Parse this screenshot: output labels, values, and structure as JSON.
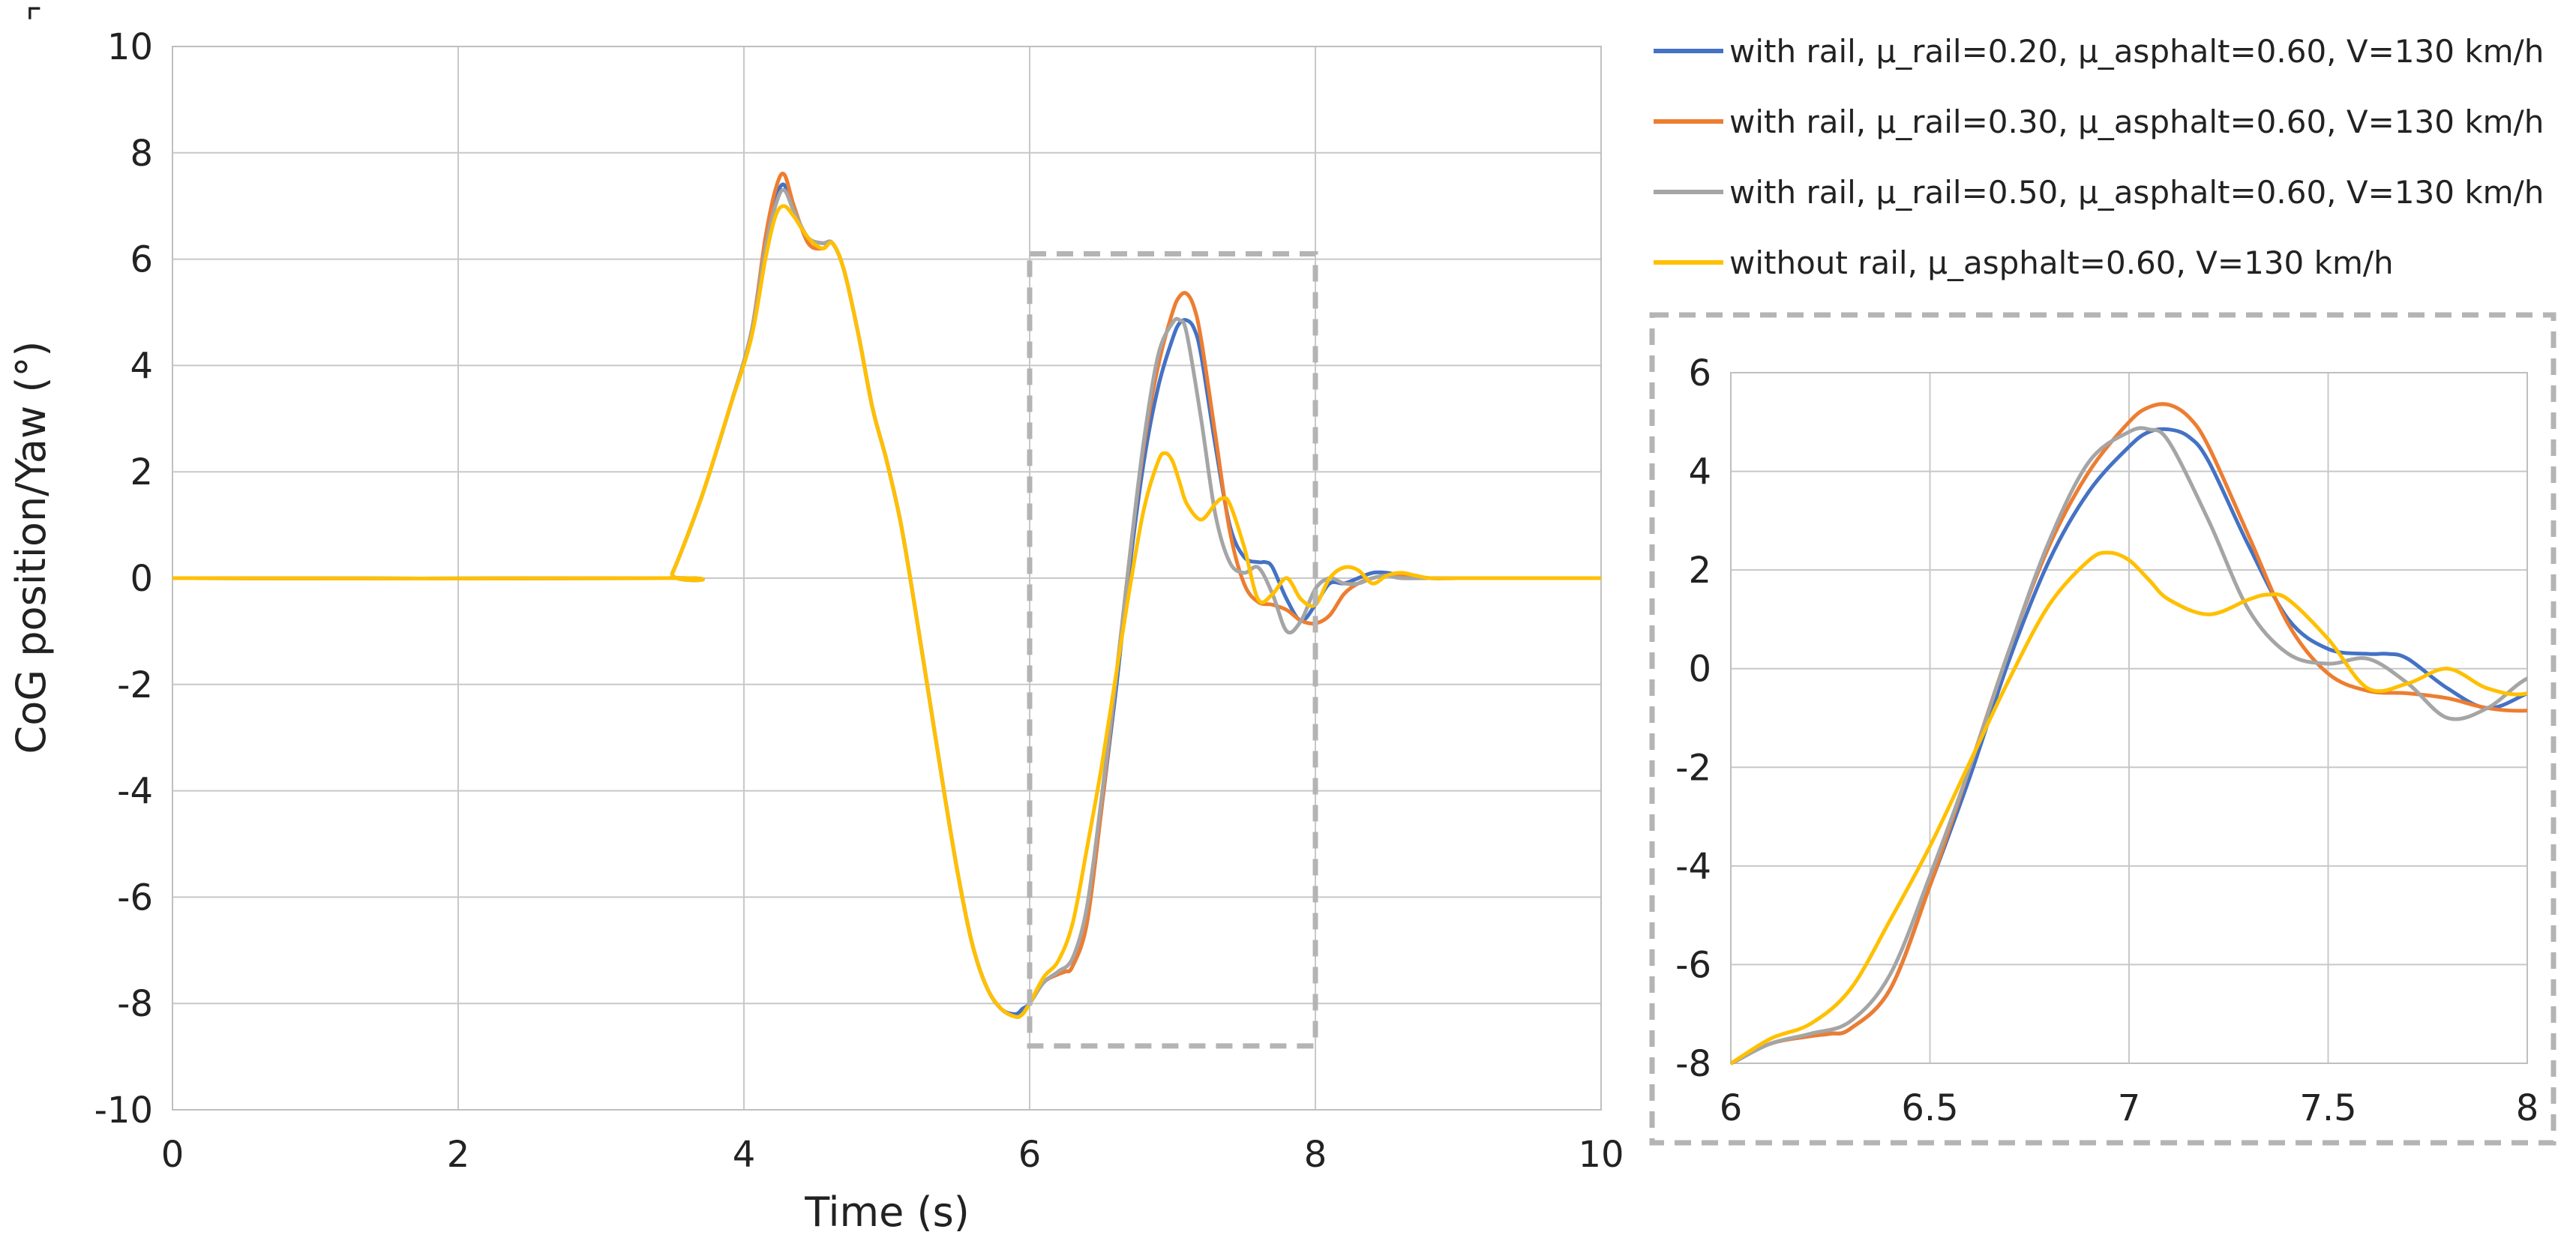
{
  "chart_data": [
    {
      "id": "main",
      "type": "line",
      "title": "",
      "xlabel": "Time  (s)",
      "ylabel": "CoG position/Yaw (°)",
      "xlim": [
        0,
        10
      ],
      "ylim": [
        -10,
        10
      ],
      "xticks": [
        0,
        2,
        4,
        6,
        8,
        10
      ],
      "yticks": [
        -10,
        -8,
        -6,
        -4,
        -2,
        0,
        2,
        4,
        6,
        8,
        10
      ],
      "grid": true,
      "legend_position": "top-right (outside plot)",
      "zoom_region": {
        "x": [
          6,
          8
        ],
        "y": [
          -8.8,
          6.1
        ]
      },
      "series": [
        {
          "name": "with rail, μ_rail=0.20, μ_asphalt=0.60, V=130 km/h",
          "color": "#4472C4",
          "x": [
            0,
            3.45,
            3.5,
            3.7,
            3.9,
            4.05,
            4.15,
            4.22,
            4.28,
            4.35,
            4.45,
            4.55,
            4.62,
            4.7,
            4.8,
            4.9,
            5.0,
            5.1,
            5.2,
            5.3,
            5.4,
            5.5,
            5.6,
            5.7,
            5.8,
            5.9,
            5.95,
            6.0,
            6.1,
            6.2,
            6.25,
            6.3,
            6.4,
            6.5,
            6.6,
            6.7,
            6.8,
            6.9,
            7.0,
            7.05,
            7.1,
            7.15,
            7.2,
            7.3,
            7.4,
            7.5,
            7.6,
            7.65,
            7.7,
            7.8,
            7.9,
            8.0,
            8.1,
            8.2,
            8.3,
            8.4,
            8.5,
            8.6,
            8.8,
            9.0,
            9.5,
            10
          ],
          "y": [
            0,
            0,
            0.1,
            1.5,
            3.2,
            4.6,
            6.2,
            7.1,
            7.4,
            6.9,
            6.4,
            6.3,
            6.3,
            5.8,
            4.6,
            3.2,
            2.2,
            1.0,
            -0.6,
            -2.3,
            -4.0,
            -5.6,
            -6.9,
            -7.7,
            -8.1,
            -8.2,
            -8.1,
            -8.0,
            -7.6,
            -7.45,
            -7.4,
            -7.3,
            -6.5,
            -4.4,
            -2.2,
            0.2,
            2.2,
            3.6,
            4.5,
            4.8,
            4.85,
            4.7,
            4.2,
            2.5,
            1.0,
            0.4,
            0.3,
            0.3,
            0.2,
            -0.4,
            -0.8,
            -0.5,
            -0.1,
            -0.1,
            0.0,
            0.1,
            0.1,
            0.05,
            0.0,
            0.0,
            0.0,
            0.0
          ]
        },
        {
          "name": "with rail, μ_rail=0.30, μ_asphalt=0.60, V=130 km/h",
          "color": "#ED7D31",
          "x": [
            0,
            3.45,
            3.5,
            3.7,
            3.9,
            4.05,
            4.15,
            4.22,
            4.28,
            4.35,
            4.45,
            4.55,
            4.62,
            4.7,
            4.8,
            4.9,
            5.0,
            5.1,
            5.2,
            5.3,
            5.4,
            5.5,
            5.6,
            5.7,
            5.8,
            5.9,
            5.95,
            6.0,
            6.1,
            6.2,
            6.25,
            6.3,
            6.4,
            6.5,
            6.6,
            6.7,
            6.8,
            6.9,
            7.0,
            7.05,
            7.1,
            7.15,
            7.2,
            7.3,
            7.4,
            7.5,
            7.6,
            7.7,
            7.8,
            7.9,
            8.0,
            8.1,
            8.2,
            8.3,
            8.4,
            8.5,
            8.6,
            8.8,
            9.0,
            9.5,
            10
          ],
          "y": [
            0,
            0,
            0.1,
            1.5,
            3.2,
            4.6,
            6.4,
            7.3,
            7.6,
            7.0,
            6.3,
            6.2,
            6.3,
            5.8,
            4.6,
            3.2,
            2.2,
            1.0,
            -0.6,
            -2.3,
            -4.0,
            -5.6,
            -6.9,
            -7.7,
            -8.1,
            -8.25,
            -8.2,
            -8.0,
            -7.6,
            -7.45,
            -7.4,
            -7.3,
            -6.5,
            -4.4,
            -2.0,
            0.4,
            2.5,
            4.0,
            5.0,
            5.3,
            5.35,
            5.1,
            4.5,
            2.7,
            0.9,
            -0.1,
            -0.45,
            -0.5,
            -0.6,
            -0.8,
            -0.85,
            -0.7,
            -0.3,
            -0.1,
            0.0,
            0.05,
            0.05,
            0.0,
            0.0,
            0.0,
            0.0
          ]
        },
        {
          "name": "with rail, μ_rail=0.50, μ_asphalt=0.60, V=130 km/h",
          "color": "#A5A5A5",
          "x": [
            0,
            3.45,
            3.5,
            3.7,
            3.9,
            4.05,
            4.15,
            4.22,
            4.28,
            4.35,
            4.45,
            4.55,
            4.62,
            4.7,
            4.8,
            4.9,
            5.0,
            5.1,
            5.2,
            5.3,
            5.4,
            5.5,
            5.6,
            5.7,
            5.8,
            5.9,
            5.95,
            6.0,
            6.1,
            6.2,
            6.3,
            6.4,
            6.5,
            6.6,
            6.7,
            6.8,
            6.9,
            7.0,
            7.05,
            7.1,
            7.2,
            7.3,
            7.4,
            7.5,
            7.6,
            7.7,
            7.8,
            7.9,
            8.0,
            8.1,
            8.2,
            8.3,
            8.4,
            8.5,
            8.6,
            8.8,
            9.0,
            9.5,
            10
          ],
          "y": [
            0,
            0,
            0.1,
            1.5,
            3.2,
            4.6,
            6.2,
            7.0,
            7.3,
            6.9,
            6.4,
            6.3,
            6.3,
            5.8,
            4.6,
            3.2,
            2.2,
            1.0,
            -0.6,
            -2.3,
            -4.0,
            -5.6,
            -6.9,
            -7.7,
            -8.1,
            -8.25,
            -8.2,
            -8.0,
            -7.6,
            -7.4,
            -7.15,
            -6.2,
            -4.2,
            -2.0,
            0.4,
            2.6,
            4.2,
            4.8,
            4.85,
            4.6,
            3.0,
            1.2,
            0.3,
            0.1,
            0.2,
            -0.3,
            -1.0,
            -0.8,
            -0.2,
            0.0,
            -0.1,
            -0.1,
            0.0,
            0.05,
            0.0,
            0.0,
            0.0,
            0.0,
            0.0
          ]
        },
        {
          "name": "without rail, μ_asphalt=0.60, V=130 km/h",
          "color": "#FFC000",
          "x": [
            0,
            3.45,
            3.5,
            3.7,
            3.9,
            4.05,
            4.15,
            4.22,
            4.28,
            4.35,
            4.45,
            4.55,
            4.62,
            4.7,
            4.8,
            4.9,
            5.0,
            5.1,
            5.2,
            5.3,
            5.4,
            5.5,
            5.6,
            5.7,
            5.8,
            5.9,
            5.95,
            6.0,
            6.1,
            6.2,
            6.3,
            6.4,
            6.5,
            6.6,
            6.7,
            6.8,
            6.9,
            6.95,
            7.0,
            7.05,
            7.1,
            7.2,
            7.3,
            7.35,
            7.4,
            7.5,
            7.6,
            7.7,
            7.8,
            7.9,
            8.0,
            8.1,
            8.2,
            8.3,
            8.4,
            8.5,
            8.6,
            8.7,
            8.8,
            9.0,
            9.5,
            10
          ],
          "y": [
            0,
            0,
            0.1,
            1.5,
            3.2,
            4.5,
            6.0,
            6.8,
            7.0,
            6.8,
            6.4,
            6.2,
            6.3,
            5.8,
            4.6,
            3.2,
            2.2,
            1.0,
            -0.6,
            -2.3,
            -4.0,
            -5.6,
            -6.9,
            -7.7,
            -8.1,
            -8.25,
            -8.2,
            -8.0,
            -7.5,
            -7.2,
            -6.5,
            -5.1,
            -3.6,
            -1.9,
            -0.2,
            1.3,
            2.2,
            2.35,
            2.2,
            1.8,
            1.4,
            1.1,
            1.4,
            1.5,
            1.4,
            0.6,
            -0.4,
            -0.3,
            0.0,
            -0.4,
            -0.5,
            0.0,
            0.2,
            0.15,
            -0.1,
            0.05,
            0.1,
            0.05,
            0.0,
            0.0,
            0.0,
            0.0
          ]
        }
      ]
    },
    {
      "id": "inset",
      "type": "line",
      "title": "",
      "xlabel": "",
      "ylabel": "",
      "xlim": [
        6,
        8
      ],
      "ylim": [
        -8,
        6
      ],
      "xticks": [
        6,
        6.5,
        7,
        7.5,
        8
      ],
      "yticks": [
        -8,
        -6,
        -4,
        -2,
        0,
        2,
        4,
        6
      ],
      "grid": true,
      "series_ref": "main"
    }
  ]
}
